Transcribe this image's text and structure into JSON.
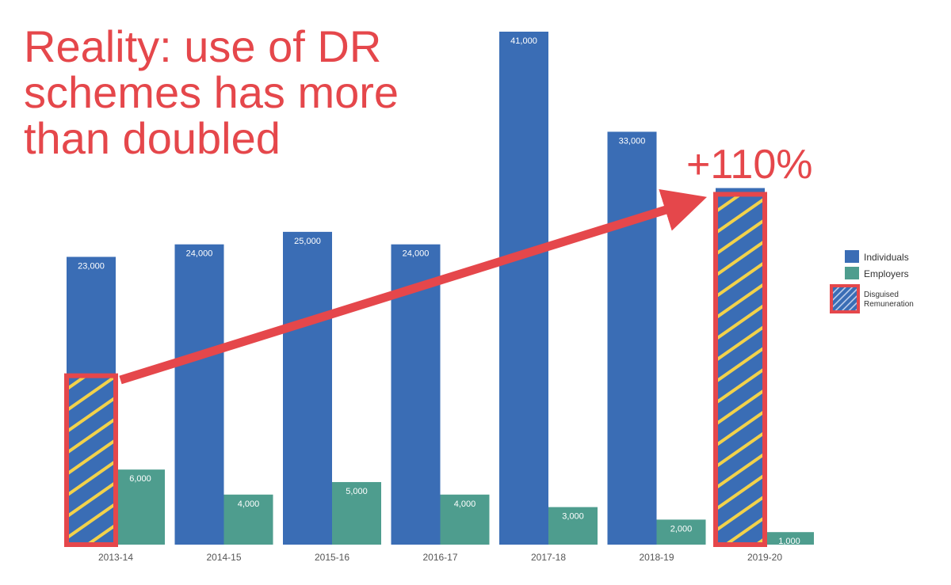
{
  "headline": {
    "lines": [
      "Reality: use of DR",
      "schemes has more",
      "than doubled"
    ]
  },
  "change_label": "+110%",
  "colors": {
    "individuals": "#3a6db5",
    "employers": "#4e9d8e",
    "accent": "#e5474b",
    "hatch": "#f2d24a",
    "value_label": "#ffffff",
    "axis_label": "#555555"
  },
  "chart_data": {
    "type": "bar",
    "categories": [
      "2013-14",
      "2014-15",
      "2015-16",
      "2016-17",
      "2017-18",
      "2018-19",
      "2019-20"
    ],
    "series": [
      {
        "name": "Individuals",
        "values": [
          23000,
          24000,
          25000,
          24000,
          41000,
          33000,
          28500
        ],
        "labels": [
          "23,000",
          "24,000",
          "25,000",
          "24,000",
          "41,000",
          "33,000",
          ""
        ]
      },
      {
        "name": "Employers",
        "values": [
          6000,
          4000,
          5000,
          4000,
          3000,
          2000,
          1000
        ],
        "labels": [
          "6,000",
          "4,000",
          "5,000",
          "4,000",
          "3,000",
          "2,000",
          "1,000"
        ]
      }
    ],
    "highlight": {
      "name": "Disguised Remuneration",
      "values": [
        13500,
        null,
        null,
        null,
        null,
        null,
        28000
      ]
    },
    "ylim": [
      0,
      41000
    ],
    "grid": false,
    "legend": {
      "position": "right",
      "entries": [
        "Individuals",
        "Employers",
        "Disguised Remuneration"
      ]
    }
  }
}
